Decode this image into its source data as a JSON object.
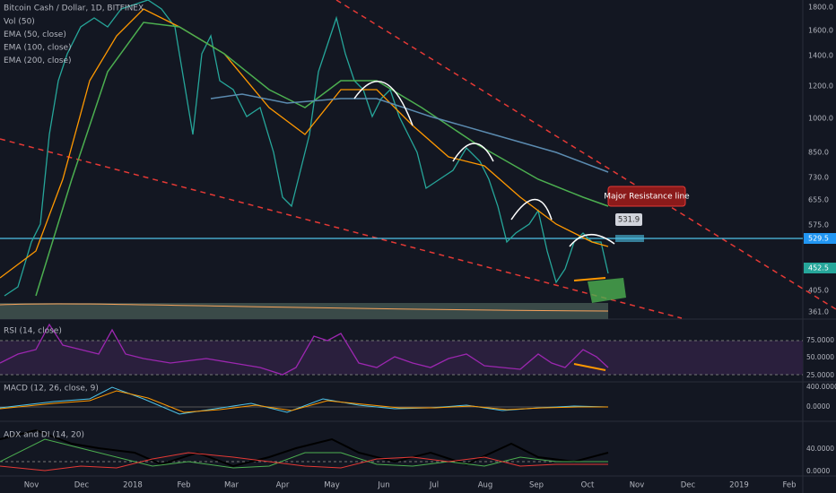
{
  "legend": {
    "symbol": "Bitcoin Cash / Dollar, 1D, BITFINEX",
    "lines": [
      "Vol (50)",
      "EMA (50, close)",
      "EMA (100, close)",
      "EMA (200, close)"
    ]
  },
  "price_axis": [
    "1800.0",
    "1600.0",
    "1400.0",
    "1200.0",
    "1000.0",
    "850.0",
    "730.0",
    "655.0",
    "575.0",
    "529.5",
    "452.5",
    "405.0",
    "361.0"
  ],
  "annotations": {
    "resistance": "Major Resistance line",
    "price_tag": "531.9"
  },
  "panes": [
    {
      "label": "RSI (14, close)",
      "axis": [
        "75.0000",
        "50.0000",
        "25.0000"
      ]
    },
    {
      "label": "MACD (12, 26, close, 9)",
      "axis": [
        "400.0000",
        "0.0000"
      ]
    },
    {
      "label": "ADX and DI (14, 20)",
      "axis": [
        "40.0000",
        "0.0000"
      ]
    }
  ],
  "time_axis": [
    "Nov",
    "Dec",
    "2018",
    "Feb",
    "Mar",
    "Apr",
    "May",
    "Jun",
    "Jul",
    "Aug",
    "Sep",
    "Oct",
    "Nov",
    "Dec",
    "2019",
    "Feb"
  ]
}
